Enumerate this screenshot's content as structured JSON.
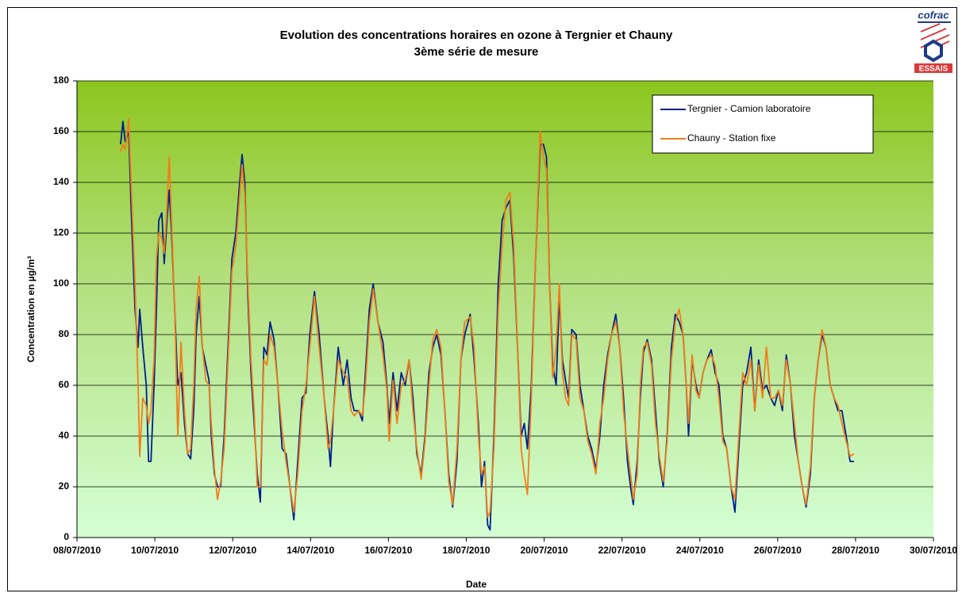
{
  "chart_data": {
    "type": "line",
    "title": "Evolution des concentrations horaires en ozone à Tergnier et Chauny",
    "subtitle": "3ème série de mesure",
    "logo_text": "cofrac",
    "logo_subtext": "ESSAIS",
    "x_label": "Date",
    "y_label": "Concentration en µg/m³",
    "xlim": [
      0,
      22
    ],
    "xticks": [
      {
        "value": 0,
        "label": "08/07/2010"
      },
      {
        "value": 2,
        "label": "10/07/2010"
      },
      {
        "value": 4,
        "label": "12/07/2010"
      },
      {
        "value": 6,
        "label": "14/07/2010"
      },
      {
        "value": 8,
        "label": "16/07/2010"
      },
      {
        "value": 10,
        "label": "18/07/2010"
      },
      {
        "value": 12,
        "label": "20/07/2010"
      },
      {
        "value": 14,
        "label": "22/07/2010"
      },
      {
        "value": 16,
        "label": "24/07/2010"
      },
      {
        "value": 18,
        "label": "26/07/2010"
      },
      {
        "value": 20,
        "label": "28/07/2010"
      },
      {
        "value": 22,
        "label": "30/07/2010"
      }
    ],
    "ylim": [
      0,
      180
    ],
    "yticks": [
      0,
      20,
      40,
      60,
      80,
      100,
      120,
      140,
      160,
      180
    ],
    "grid": true,
    "legend": "upper right",
    "x": [
      1.12,
      1.18,
      1.24,
      1.33,
      1.39,
      1.49,
      1.57,
      1.61,
      1.69,
      1.78,
      1.84,
      1.9,
      1.98,
      2.04,
      2.1,
      2.18,
      2.24,
      2.31,
      2.37,
      2.43,
      2.51,
      2.59,
      2.67,
      2.76,
      2.84,
      2.92,
      3.0,
      3.06,
      3.14,
      3.22,
      3.31,
      3.39,
      3.45,
      3.53,
      3.61,
      3.69,
      3.78,
      3.88,
      3.98,
      4.08,
      4.18,
      4.24,
      4.31,
      4.39,
      4.47,
      4.55,
      4.63,
      4.71,
      4.8,
      4.88,
      4.96,
      5.06,
      5.16,
      5.27,
      5.37,
      5.47,
      5.57,
      5.67,
      5.78,
      5.88,
      5.98,
      6.1,
      6.22,
      6.35,
      6.45,
      6.51,
      6.59,
      6.71,
      6.84,
      6.94,
      7.04,
      7.12,
      7.24,
      7.33,
      7.41,
      7.51,
      7.61,
      7.73,
      7.86,
      7.96,
      8.02,
      8.12,
      8.22,
      8.33,
      8.43,
      8.53,
      8.63,
      8.73,
      8.84,
      8.94,
      9.04,
      9.14,
      9.24,
      9.35,
      9.45,
      9.55,
      9.65,
      9.76,
      9.86,
      9.96,
      10.1,
      10.2,
      10.31,
      10.39,
      10.47,
      10.55,
      10.61,
      10.71,
      10.82,
      10.92,
      11.02,
      11.12,
      11.22,
      11.33,
      11.41,
      11.49,
      11.57,
      11.67,
      11.78,
      11.9,
      11.98,
      12.06,
      12.14,
      12.22,
      12.31,
      12.39,
      12.47,
      12.55,
      12.63,
      12.71,
      12.82,
      12.92,
      13.02,
      13.12,
      13.22,
      13.33,
      13.43,
      13.53,
      13.63,
      13.73,
      13.84,
      13.94,
      14.04,
      14.14,
      14.22,
      14.29,
      14.39,
      14.47,
      14.55,
      14.65,
      14.76,
      14.86,
      14.96,
      15.06,
      15.16,
      15.27,
      15.37,
      15.47,
      15.57,
      15.65,
      15.71,
      15.8,
      15.9,
      15.98,
      16.08,
      16.18,
      16.29,
      16.39,
      16.49,
      16.59,
      16.69,
      16.8,
      16.9,
      17.0,
      17.1,
      17.2,
      17.31,
      17.41,
      17.51,
      17.61,
      17.71,
      17.82,
      17.92,
      18.02,
      18.12,
      18.22,
      18.33,
      18.43,
      18.53,
      18.63,
      18.73,
      18.84,
      18.94,
      19.04,
      19.14,
      19.24,
      19.35,
      19.45,
      19.55,
      19.65,
      19.76,
      19.86,
      19.96
    ],
    "series": [
      {
        "name": "Tergnier - Camion laboratoire",
        "color": "#001f8c",
        "values": [
          155,
          164,
          156,
          160,
          130,
          90,
          75,
          90,
          75,
          60,
          30,
          30,
          60,
          90,
          125,
          128,
          108,
          125,
          137,
          120,
          90,
          60,
          65,
          45,
          33,
          31,
          50,
          80,
          95,
          75,
          68,
          62,
          40,
          25,
          20,
          20,
          40,
          75,
          110,
          120,
          140,
          151,
          140,
          95,
          65,
          45,
          25,
          14,
          75,
          72,
          85,
          78,
          60,
          35,
          33,
          20,
          7,
          30,
          55,
          57,
          80,
          97,
          80,
          55,
          40,
          28,
          50,
          75,
          60,
          70,
          55,
          50,
          50,
          46,
          65,
          90,
          100,
          85,
          77,
          60,
          45,
          65,
          50,
          65,
          60,
          70,
          55,
          33,
          25,
          40,
          65,
          75,
          80,
          72,
          50,
          25,
          12,
          30,
          70,
          80,
          88,
          70,
          45,
          20,
          30,
          5,
          3,
          40,
          100,
          125,
          130,
          133,
          110,
          70,
          40,
          45,
          35,
          60,
          110,
          155,
          155,
          150,
          100,
          68,
          60,
          95,
          70,
          62,
          55,
          82,
          80,
          60,
          50,
          40,
          35,
          27,
          40,
          60,
          72,
          80,
          88,
          75,
          55,
          30,
          20,
          13,
          30,
          55,
          73,
          78,
          70,
          50,
          30,
          20,
          40,
          75,
          88,
          85,
          80,
          60,
          40,
          70,
          60,
          55,
          65,
          70,
          74,
          65,
          60,
          40,
          35,
          20,
          10,
          35,
          60,
          65,
          75,
          50,
          70,
          58,
          60,
          55,
          52,
          58,
          50,
          72,
          60,
          40,
          30,
          20,
          12,
          25,
          55,
          70,
          80,
          75,
          60,
          55,
          50,
          50,
          40,
          30,
          30
        ]
      },
      {
        "name": "Chauny - Station fixe",
        "color": "#f07d1a",
        "values": [
          152,
          155,
          153,
          165,
          140,
          100,
          60,
          32,
          55,
          52,
          45,
          50,
          70,
          110,
          120,
          118,
          112,
          130,
          150,
          125,
          90,
          40,
          77,
          50,
          33,
          35,
          60,
          90,
          103,
          75,
          62,
          60,
          45,
          27,
          15,
          22,
          35,
          70,
          105,
          115,
          135,
          147,
          135,
          100,
          70,
          50,
          20,
          20,
          70,
          68,
          80,
          75,
          60,
          42,
          30,
          20,
          10,
          25,
          50,
          60,
          75,
          95,
          75,
          55,
          35,
          38,
          50,
          70,
          65,
          63,
          50,
          48,
          50,
          48,
          60,
          85,
          98,
          85,
          72,
          58,
          38,
          62,
          45,
          60,
          62,
          70,
          50,
          35,
          23,
          38,
          60,
          78,
          82,
          75,
          50,
          22,
          13,
          35,
          70,
          85,
          87,
          75,
          40,
          25,
          28,
          8,
          10,
          35,
          90,
          115,
          133,
          136,
          115,
          70,
          35,
          25,
          17,
          55,
          110,
          160,
          150,
          145,
          100,
          63,
          75,
          100,
          65,
          55,
          52,
          80,
          78,
          55,
          50,
          38,
          33,
          25,
          45,
          55,
          70,
          80,
          85,
          75,
          50,
          35,
          25,
          15,
          25,
          60,
          75,
          77,
          68,
          45,
          32,
          22,
          38,
          70,
          85,
          90,
          80,
          60,
          45,
          72,
          58,
          55,
          65,
          70,
          72,
          68,
          55,
          38,
          35,
          20,
          15,
          40,
          65,
          60,
          70,
          50,
          68,
          55,
          75,
          55,
          55,
          58,
          52,
          70,
          60,
          45,
          30,
          20,
          13,
          28,
          55,
          70,
          82,
          75,
          60,
          55,
          52,
          45,
          38,
          32,
          33
        ]
      }
    ]
  }
}
